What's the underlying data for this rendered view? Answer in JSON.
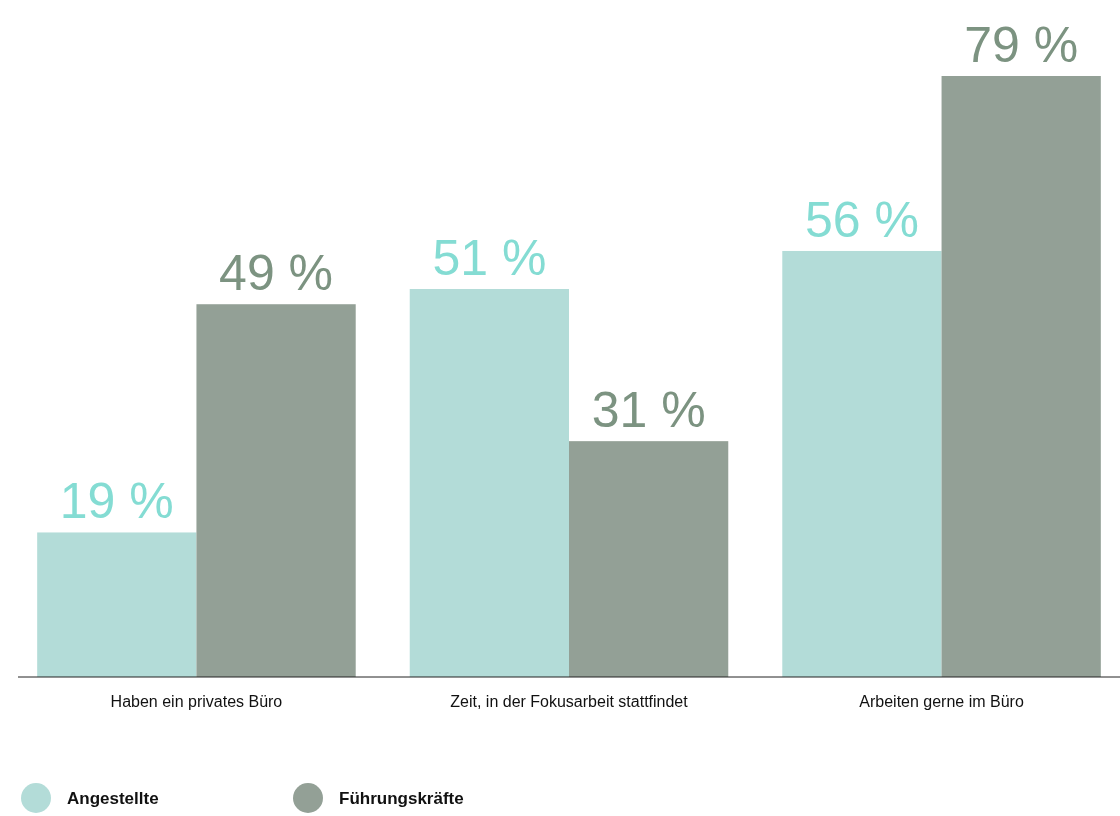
{
  "chart_data": {
    "type": "bar",
    "categories": [
      "Haben ein privates Büro",
      "Zeit, in der Fokusarbeit stattfindet",
      "Arbeiten gerne im Büro"
    ],
    "series": [
      {
        "name": "Angestellte",
        "color": "#b3dcd8",
        "values": [
          19,
          51,
          56
        ],
        "value_labels": [
          "19 %",
          "51 %",
          "56 %"
        ]
      },
      {
        "name": "Führungskräfte",
        "color": "#93a096",
        "values": [
          49,
          31,
          79
        ],
        "value_labels": [
          "49 %",
          "31 %",
          "79 %"
        ]
      }
    ],
    "legend": "bottom left"
  }
}
